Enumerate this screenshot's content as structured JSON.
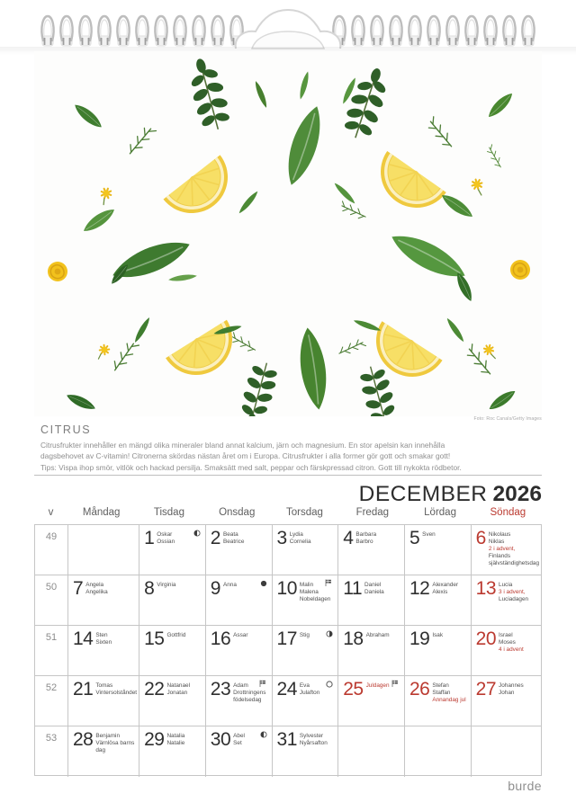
{
  "header": {
    "month": "DECEMBER",
    "year": "2026"
  },
  "photo_credit": "Foto: Roc Canals/Getty Images",
  "description": {
    "title": "CITRUS",
    "lines": [
      "Citrusfrukter innehåller en mängd olika mineraler bland annat kalcium, järn och magnesium. En stor apelsin kan innehålla",
      "dagsbehovet av C-vitamin! Citronerna skördas nästan året om i Europa. Citrusfrukter i alla former gör gott och smakar gott!",
      "Tips: Vispa ihop smör, vitlök och hackad persilja. Smaksätt med salt, peppar och färskpressad citron. Gott till nykokta rödbetor."
    ]
  },
  "calendar": {
    "week_label": "v",
    "day_headers": [
      "Måndag",
      "Tisdag",
      "Onsdag",
      "Torsdag",
      "Fredag",
      "Lördag",
      "Söndag"
    ],
    "weeks": [
      {
        "week": "49",
        "days": [
          null,
          {
            "date": "1",
            "names": [
              "Oskar",
              "Ossian"
            ],
            "moon": "last-quarter"
          },
          {
            "date": "2",
            "names": [
              "Beata",
              "Beatrice"
            ]
          },
          {
            "date": "3",
            "names": [
              "Lydia",
              "Cornelia"
            ]
          },
          {
            "date": "4",
            "names": [
              "Barbara",
              "Barbro"
            ]
          },
          {
            "date": "5",
            "names": [
              "Sven"
            ]
          },
          {
            "date": "6",
            "red": true,
            "names": [
              "Nikolaus",
              "Niklas"
            ],
            "red_note": "2 i advent,",
            "note": "Finlands självständighetsdag"
          }
        ]
      },
      {
        "week": "50",
        "days": [
          {
            "date": "7",
            "names": [
              "Angela",
              "Angelika"
            ]
          },
          {
            "date": "8",
            "names": [
              "Virginia"
            ]
          },
          {
            "date": "9",
            "names": [
              "Anna"
            ],
            "moon": "new"
          },
          {
            "date": "10",
            "names": [
              "Malin",
              "Malena"
            ],
            "note": "Nobeldagen",
            "flag": true
          },
          {
            "date": "11",
            "names": [
              "Daniel",
              "Daniela"
            ]
          },
          {
            "date": "12",
            "names": [
              "Alexander",
              "Alexis"
            ]
          },
          {
            "date": "13",
            "red": true,
            "names": [
              "Lucia"
            ],
            "red_note": "3 i advent,",
            "note": "Luciadagen"
          }
        ]
      },
      {
        "week": "51",
        "days": [
          {
            "date": "14",
            "names": [
              "Sten",
              "Sixten"
            ]
          },
          {
            "date": "15",
            "names": [
              "Gottfrid"
            ]
          },
          {
            "date": "16",
            "names": [
              "Assar"
            ]
          },
          {
            "date": "17",
            "names": [
              "Stig"
            ],
            "moon": "first-quarter"
          },
          {
            "date": "18",
            "names": [
              "Abraham"
            ]
          },
          {
            "date": "19",
            "names": [
              "Isak"
            ]
          },
          {
            "date": "20",
            "red": true,
            "names": [
              "Israel",
              "Moses"
            ],
            "red_note": "4 i advent"
          }
        ]
      },
      {
        "week": "52",
        "days": [
          {
            "date": "21",
            "names": [
              "Tomas"
            ],
            "note": "Vintersolståndet"
          },
          {
            "date": "22",
            "names": [
              "Natanael",
              "Jonatan"
            ]
          },
          {
            "date": "23",
            "names": [
              "Adam"
            ],
            "note": "Drottningens födelsedag",
            "flag": true
          },
          {
            "date": "24",
            "names": [
              "Eva"
            ],
            "note": "Julafton",
            "moon": "full"
          },
          {
            "date": "25",
            "red": true,
            "red_note": "Juldagen",
            "flag": true
          },
          {
            "date": "26",
            "red": true,
            "names": [
              "Stefan",
              "Staffan"
            ],
            "red_note": "Annandag jul"
          },
          {
            "date": "27",
            "red": true,
            "names": [
              "Johannes",
              "Johan"
            ]
          }
        ]
      },
      {
        "week": "53",
        "days": [
          {
            "date": "28",
            "names": [
              "Benjamin"
            ],
            "note": "Värnlösa barns dag"
          },
          {
            "date": "29",
            "names": [
              "Natalia",
              "Natalie"
            ]
          },
          {
            "date": "30",
            "names": [
              "Abel",
              "Set"
            ],
            "moon": "last-quarter"
          },
          {
            "date": "31",
            "names": [
              "Sylvester"
            ],
            "note": "Nyårsafton"
          },
          null,
          null,
          null
        ]
      }
    ]
  },
  "brand": "burde",
  "colors": {
    "accent_red": "#bb3a30",
    "grid_line": "#c6c6c6",
    "text_gray": "#8f8f8f"
  }
}
